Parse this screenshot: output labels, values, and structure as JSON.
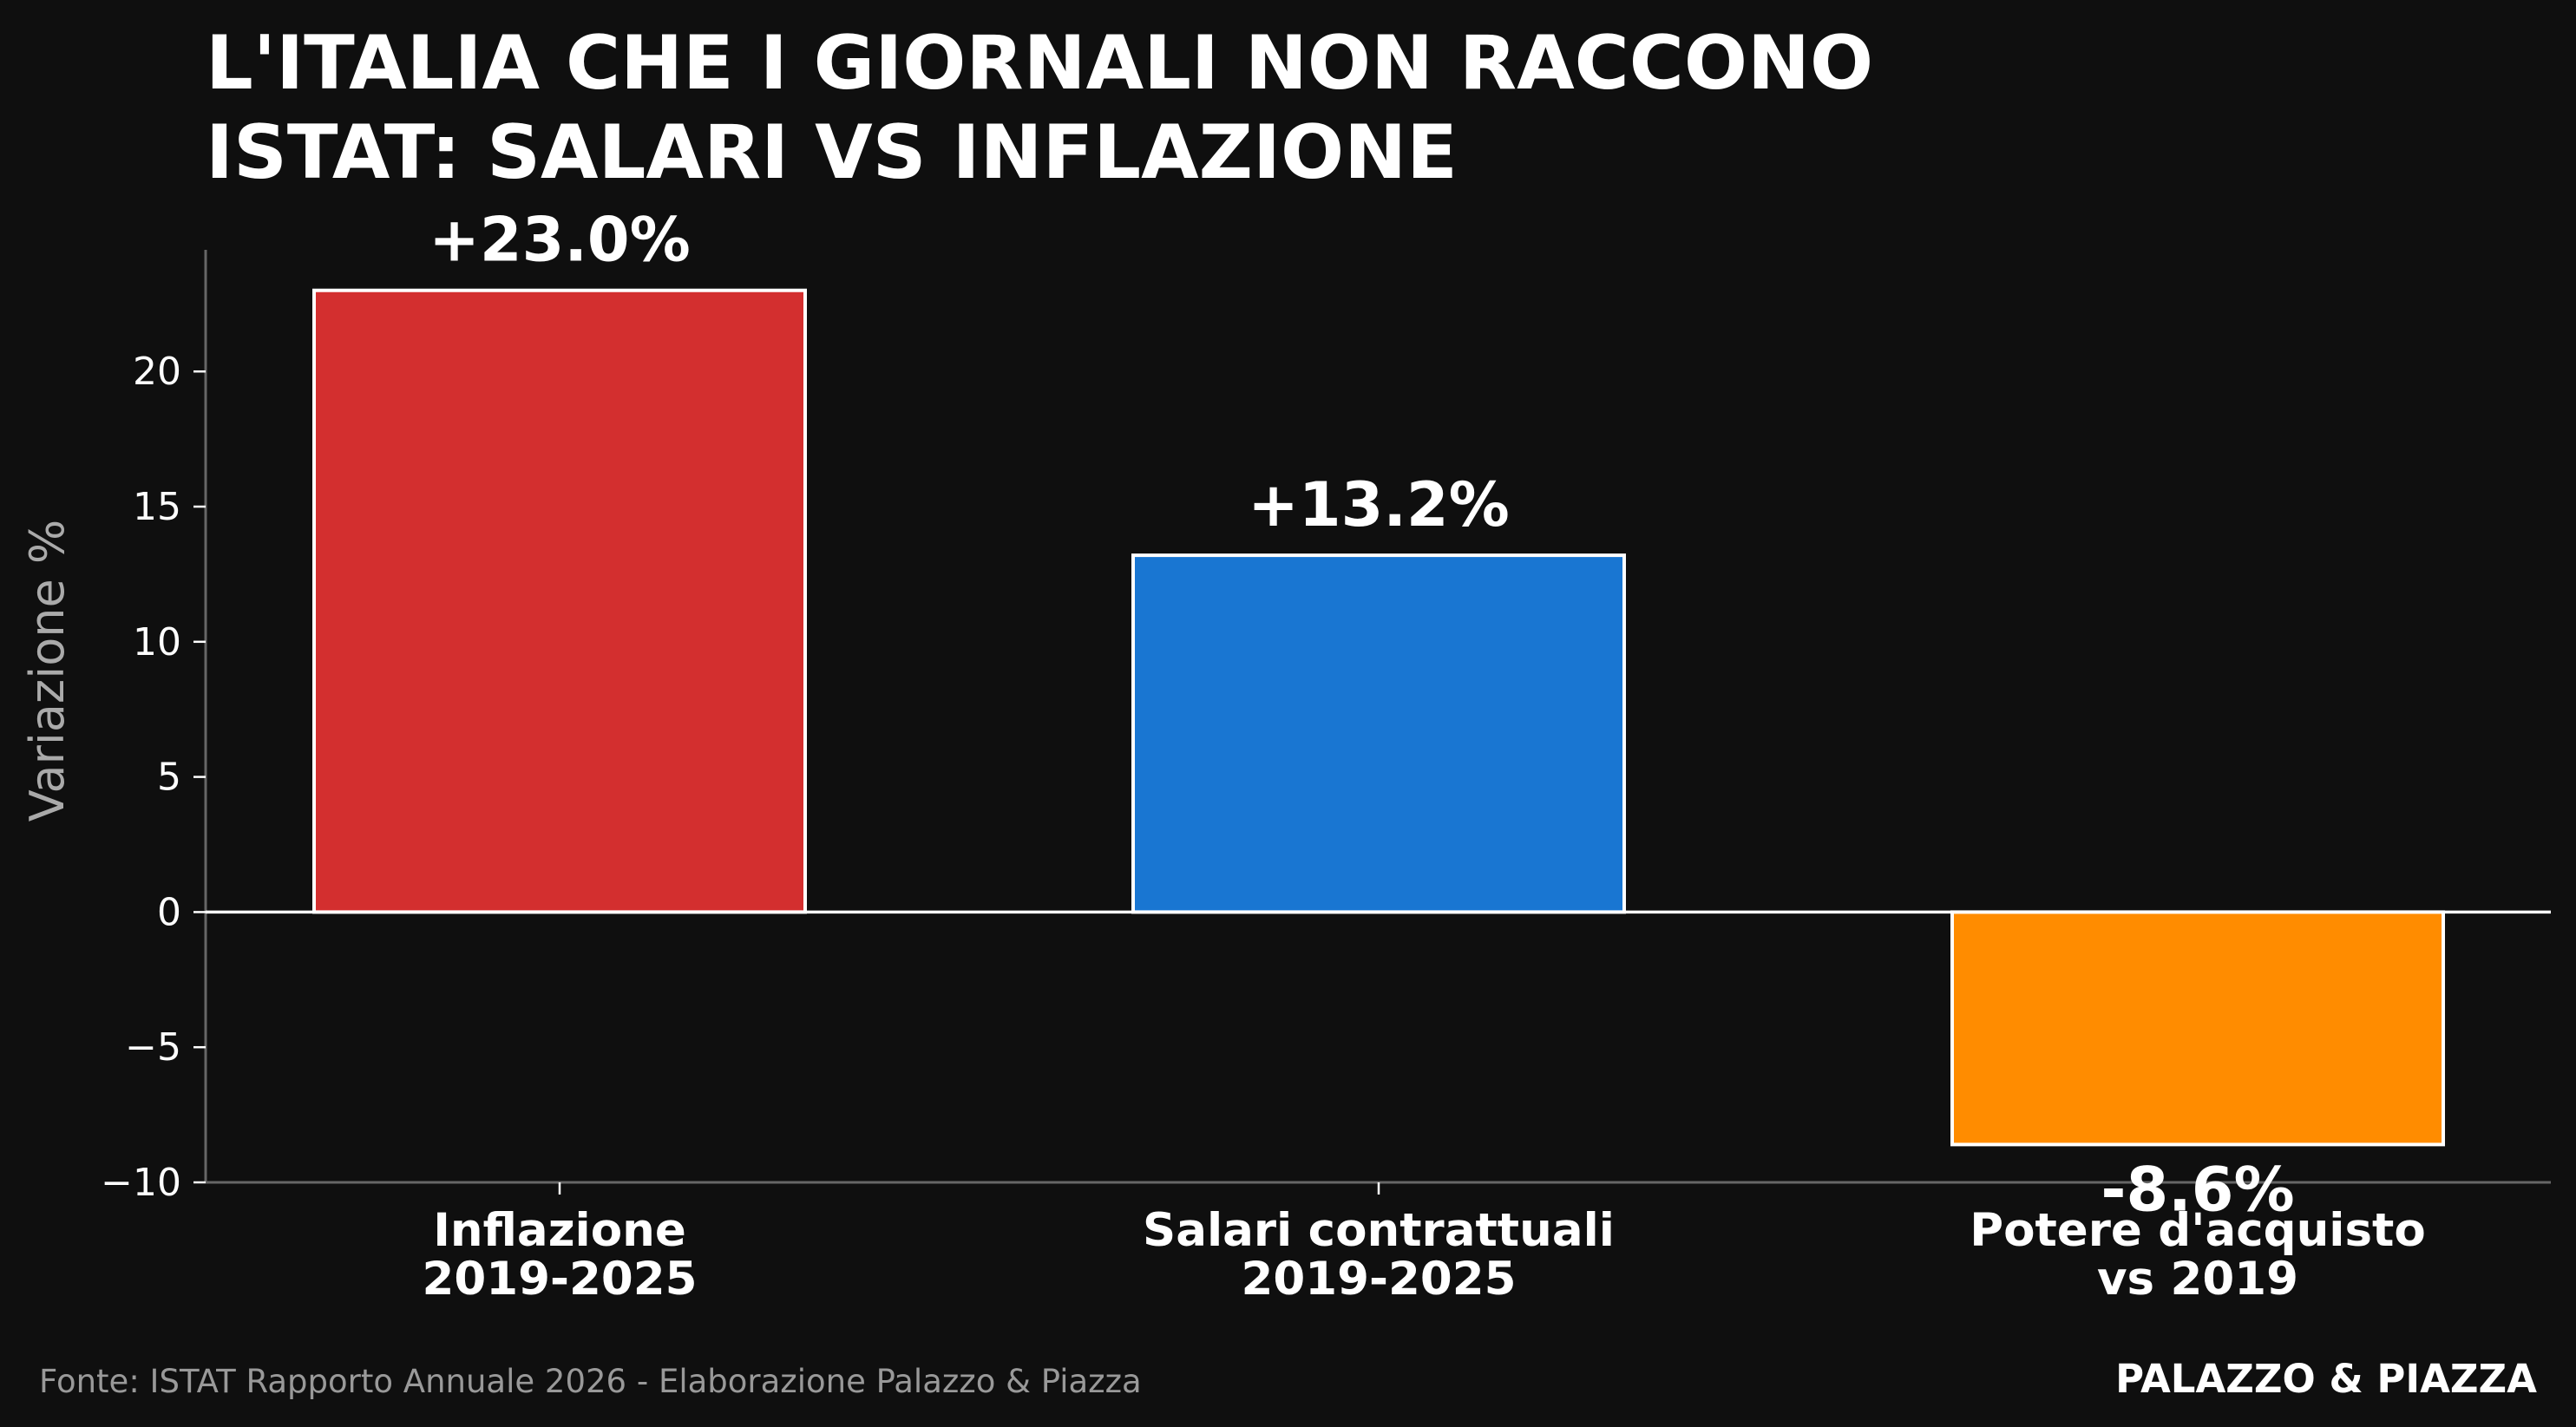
{
  "chart_data": {
    "type": "bar",
    "title_lines": [
      "L'ITALIA CHE I GIORNALI NON RACCONO",
      "ISTAT: SALARI VS INFLAZIONE"
    ],
    "ylabel": "Variazione %",
    "xlabel": "",
    "ylim": [
      -10,
      24.5
    ],
    "yticks": [
      -10,
      -5,
      0,
      5,
      10,
      15,
      20
    ],
    "ytick_labels": [
      "−10",
      "−5",
      "0",
      "5",
      "10",
      "15",
      "20"
    ],
    "grid": false,
    "categories": [
      [
        "Inflazione",
        "2019-2025"
      ],
      [
        "Salari contrattuali",
        "2019-2025"
      ],
      [
        "Potere d'acquisto",
        "vs 2019"
      ]
    ],
    "values": [
      23.0,
      13.2,
      -8.6
    ],
    "value_labels": [
      "+23.0%",
      "+13.2%",
      "-8.6%"
    ],
    "colors": [
      "#d32f2f",
      "#1976d2",
      "#ff8c00"
    ]
  },
  "footer": {
    "source": "Fonte: ISTAT Rapporto Annuale 2026 - Elaborazione Palazzo & Piazza",
    "brand": "PALAZZO & PIAZZA"
  },
  "theme": {
    "background": "#0f0f0f",
    "axis": "#666666",
    "bar_edge": "#ffffff"
  }
}
